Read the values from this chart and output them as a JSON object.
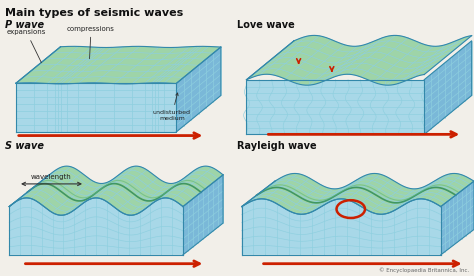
{
  "title": "Main types of seismic waves",
  "bg_color": "#f2efe9",
  "panel_titles": [
    "P wave",
    "Love wave",
    "S wave",
    "Rayleigh wave"
  ],
  "copyright": "© Encyclopaedia Britannica, Inc.",
  "grid_color": "#8ecfdf",
  "top_color_green": "#9ed4a8",
  "top_color_teal": "#7dc8d0",
  "side_color_blue": "#7ab8d8",
  "side_color_dark": "#5aa0c0",
  "front_color": "#a8d8e8",
  "arrow_color": "#cc2000",
  "text_color": "#111111",
  "label_color": "#222222",
  "ann_color": "#333333",
  "outline_color": "#3388aa"
}
